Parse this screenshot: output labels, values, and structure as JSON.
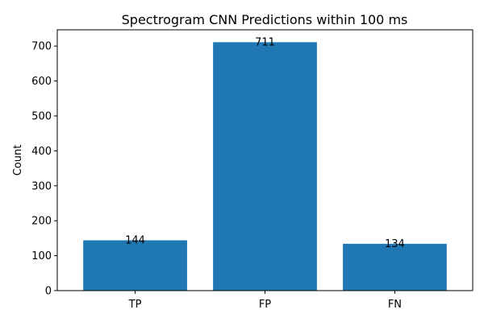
{
  "chart_data": {
    "type": "bar",
    "title": "Spectrogram CNN Predictions within 100 ms",
    "xlabel": "",
    "ylabel": "Count",
    "categories": [
      "TP",
      "FP",
      "FN"
    ],
    "values": [
      144,
      711,
      134
    ],
    "data_labels": [
      "144",
      "711",
      "134"
    ],
    "ylim": [
      0,
      746.55
    ],
    "yticks": [
      0,
      100,
      200,
      300,
      400,
      500,
      600,
      700
    ],
    "grid": false,
    "bar_color": "#1f77b4"
  }
}
